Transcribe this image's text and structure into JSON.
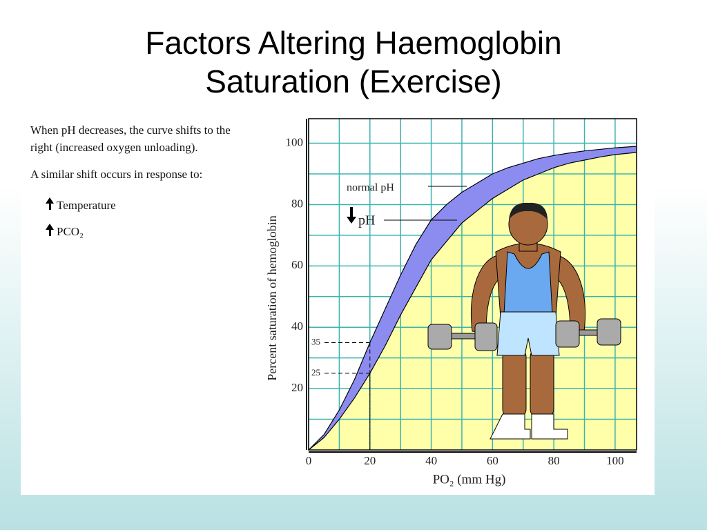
{
  "title_lines": [
    "Factors Altering Haemoglobin",
    "Saturation (Exercise)"
  ],
  "notes": {
    "paragraphs": [
      "When pH decreases, the curve shifts to the right (increased oxygen unloading).",
      "A similar shift occurs in response to:"
    ],
    "items": [
      "Temperature",
      "PCO₂"
    ]
  },
  "chart_data": {
    "type": "line",
    "x_label": "PO₂ (mm Hg)",
    "y_label": "Percent saturation of hemoglobin",
    "x": [
      0,
      5,
      10,
      15,
      20,
      25,
      30,
      35,
      40,
      45,
      50,
      55,
      60,
      65,
      70,
      75,
      80,
      85,
      90,
      95,
      100,
      107
    ],
    "series": [
      {
        "name": "normal pH",
        "color": "#000000",
        "values": [
          0,
          5,
          13,
          23,
          35,
          46,
          57,
          67,
          75,
          80,
          84,
          87,
          90,
          92,
          93.5,
          95,
          96,
          96.8,
          97.5,
          98,
          98.5,
          99
        ]
      },
      {
        "name": "pH",
        "color": "#000000",
        "values": [
          0,
          4,
          10,
          17,
          25,
          34,
          44,
          53,
          62,
          68,
          74,
          78,
          82,
          85,
          88,
          90,
          92,
          93.5,
          94.5,
          95.5,
          96.3,
          97
        ]
      }
    ],
    "band_color": "#8c8cf0",
    "area_color": "#ffffaa",
    "grid_color": "#3bb3b0",
    "xlim": [
      0,
      107
    ],
    "ylim": [
      0,
      108
    ],
    "xticks": [
      0,
      20,
      40,
      60,
      80,
      100
    ],
    "yticks": [
      20,
      40,
      60,
      80,
      100
    ],
    "x_minor_ticks": [
      10,
      30,
      50,
      70,
      90
    ],
    "y_minor_ticks": [
      10,
      30,
      50,
      70,
      90
    ],
    "grid": true,
    "annotations": [
      {
        "label": "35",
        "x": 20,
        "y": 35
      },
      {
        "label": "25",
        "x": 20,
        "y": 25
      }
    ]
  }
}
